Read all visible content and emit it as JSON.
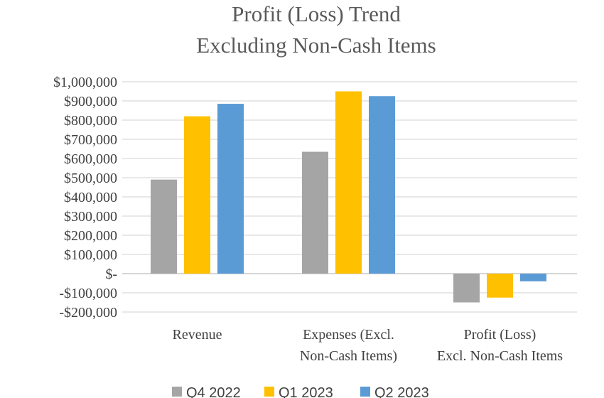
{
  "chart_data": {
    "type": "bar",
    "title_lines": [
      "Profit (Loss) Trend",
      "Excluding Non-Cash Items"
    ],
    "categories": [
      [
        "Revenue"
      ],
      [
        "Expenses (Excl.",
        "Non-Cash Items)"
      ],
      [
        "Profit (Loss)",
        "Excl. Non-Cash Items"
      ]
    ],
    "series": [
      {
        "name": "Q4 2022",
        "color": "#a5a5a5",
        "values": [
          490000,
          635000,
          -150000
        ]
      },
      {
        "name": "Q1 2023",
        "color": "#ffc000",
        "values": [
          820000,
          950000,
          -125000
        ]
      },
      {
        "name": "Q2 2023",
        "color": "#5b9bd5",
        "values": [
          885000,
          925000,
          -40000
        ]
      }
    ],
    "y_ticks": [
      {
        "value": 1000000,
        "label": "$1,000,000"
      },
      {
        "value": 900000,
        "label": "$900,000"
      },
      {
        "value": 800000,
        "label": "$800,000"
      },
      {
        "value": 700000,
        "label": "$700,000"
      },
      {
        "value": 600000,
        "label": "$600,000"
      },
      {
        "value": 500000,
        "label": "$500,000"
      },
      {
        "value": 400000,
        "label": "$400,000"
      },
      {
        "value": 300000,
        "label": "$300,000"
      },
      {
        "value": 200000,
        "label": "$200,000"
      },
      {
        "value": 100000,
        "label": "$100,000"
      },
      {
        "value": 0,
        "label": "$-"
      },
      {
        "value": -100000,
        "label": "-$100,000"
      },
      {
        "value": -200000,
        "label": "-$200,000"
      }
    ],
    "ylim": [
      -200000,
      1000000
    ],
    "grid": true,
    "legend_position": "bottom"
  }
}
